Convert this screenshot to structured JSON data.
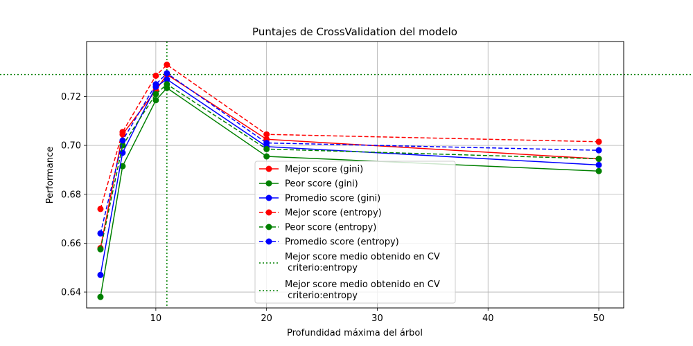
{
  "chart_data": {
    "type": "line",
    "title": "Puntajes de CrossValidation del modelo",
    "xlabel": "Profundidad máxima del árbol",
    "ylabel": "Performance",
    "xlim": [
      3.75,
      52.25
    ],
    "ylim": [
      0.6335,
      0.7425
    ],
    "xticks": [
      10,
      20,
      30,
      40,
      50
    ],
    "yticks": [
      0.64,
      0.66,
      0.68,
      0.7,
      0.72
    ],
    "ytick_labels": [
      "0.64",
      "0.66",
      "0.68",
      "0.70",
      "0.72"
    ],
    "grid": true,
    "legend_position": "lower-center",
    "x": [
      5,
      7,
      10,
      11,
      20,
      50
    ],
    "series": [
      {
        "name": "Mejor score (gini)",
        "color": "#ff0000",
        "linestyle": "solid",
        "values": [
          0.658,
          0.7045,
          0.7225,
          0.729,
          0.7025,
          0.6945
        ]
      },
      {
        "name": "Peor score (gini)",
        "color": "#008000",
        "linestyle": "solid",
        "values": [
          0.638,
          0.6915,
          0.7185,
          0.7235,
          0.6955,
          0.6895
        ]
      },
      {
        "name": "Promedio score (gini)",
        "color": "#0000ff",
        "linestyle": "solid",
        "values": [
          0.647,
          0.697,
          0.724,
          0.727,
          0.6995,
          0.692
        ]
      },
      {
        "name": "Mejor score (entropy)",
        "color": "#ff0000",
        "linestyle": "dashed",
        "values": [
          0.674,
          0.7055,
          0.7285,
          0.733,
          0.7045,
          0.7015
        ]
      },
      {
        "name": "Peor score (entropy)",
        "color": "#008000",
        "linestyle": "dashed",
        "values": [
          0.6575,
          0.7,
          0.721,
          0.725,
          0.6985,
          0.6945
        ]
      },
      {
        "name": "Promedio score (entropy)",
        "color": "#0000ff",
        "linestyle": "dashed",
        "values": [
          0.664,
          0.702,
          0.725,
          0.7295,
          0.701,
          0.698
        ]
      }
    ],
    "reference_lines": [
      {
        "name": "Mejor score medio obtenido en CV\n criterio:entropy",
        "orientation": "horizontal",
        "value": 0.729,
        "color": "#008000",
        "linestyle": "dotted"
      },
      {
        "name": "Mejor score medio obtenido en CV\n criterio:entropy",
        "orientation": "vertical",
        "value": 11,
        "color": "#008000",
        "linestyle": "dotted"
      }
    ]
  }
}
